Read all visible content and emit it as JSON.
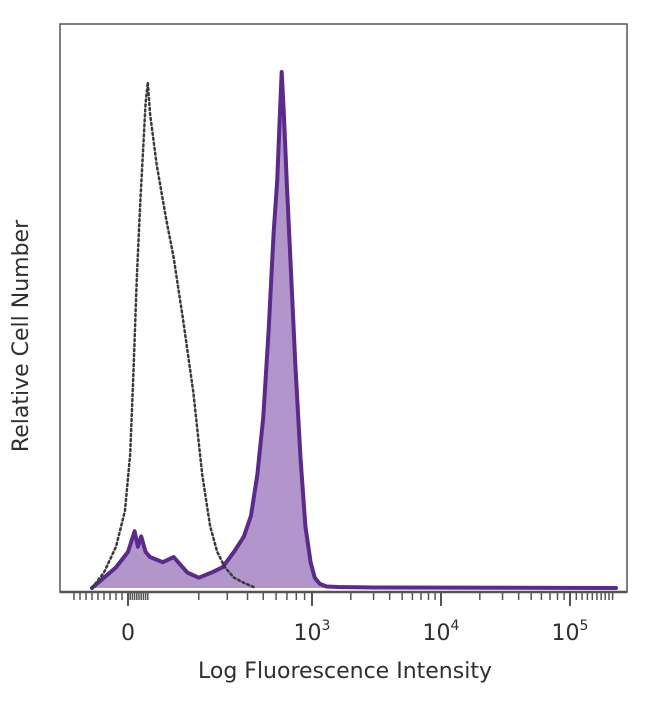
{
  "chart_data": {
    "type": "area",
    "xlabel": "Log Fluorescence Intensity",
    "ylabel": "Relative Cell Number",
    "xscale": "biexponential",
    "xlim": [
      -100,
      200000
    ],
    "ylim": [
      0,
      100
    ],
    "grid": false,
    "x_ticks": [
      {
        "value": 0,
        "base": "0",
        "exp": ""
      },
      {
        "value": 1000,
        "base": "10",
        "exp": "3"
      },
      {
        "value": 10000,
        "base": "10",
        "exp": "4"
      },
      {
        "value": 100000,
        "base": "10",
        "exp": "5"
      }
    ],
    "series": [
      {
        "style": "dotted outline",
        "color": "#3a3a3a",
        "points": [
          [
            -60,
            0
          ],
          [
            -40,
            3
          ],
          [
            -20,
            8
          ],
          [
            -5,
            15
          ],
          [
            10,
            26
          ],
          [
            25,
            42
          ],
          [
            40,
            60
          ],
          [
            55,
            74
          ],
          [
            70,
            86
          ],
          [
            80,
            94
          ],
          [
            90,
            98
          ],
          [
            100,
            92
          ],
          [
            110,
            82
          ],
          [
            125,
            72
          ],
          [
            140,
            64
          ],
          [
            160,
            52
          ],
          [
            185,
            38
          ],
          [
            210,
            22
          ],
          [
            235,
            12
          ],
          [
            260,
            7
          ],
          [
            290,
            4
          ],
          [
            330,
            2
          ],
          [
            380,
            1
          ],
          [
            450,
            0
          ]
        ]
      },
      {
        "style": "filled",
        "color": "#5b2a8a",
        "fill": "#ad8fc8",
        "points": [
          [
            -60,
            0
          ],
          [
            -40,
            2
          ],
          [
            -20,
            4
          ],
          [
            0,
            7
          ],
          [
            15,
            9
          ],
          [
            30,
            11
          ],
          [
            45,
            8
          ],
          [
            60,
            10
          ],
          [
            80,
            7
          ],
          [
            100,
            6
          ],
          [
            120,
            5
          ],
          [
            140,
            6
          ],
          [
            170,
            3
          ],
          [
            200,
            2
          ],
          [
            240,
            3
          ],
          [
            280,
            4
          ],
          [
            330,
            7
          ],
          [
            380,
            10
          ],
          [
            420,
            14
          ],
          [
            460,
            22
          ],
          [
            500,
            33
          ],
          [
            540,
            50
          ],
          [
            580,
            69
          ],
          [
            610,
            79
          ],
          [
            630,
            90
          ],
          [
            650,
            100
          ],
          [
            670,
            92
          ],
          [
            700,
            78
          ],
          [
            740,
            62
          ],
          [
            790,
            43
          ],
          [
            850,
            25
          ],
          [
            910,
            12
          ],
          [
            980,
            5
          ],
          [
            1050,
            2
          ],
          [
            1150,
            0.8
          ],
          [
            1300,
            0.3
          ],
          [
            1600,
            0.2
          ],
          [
            3000,
            0.1
          ],
          [
            200000,
            0
          ]
        ]
      }
    ]
  }
}
